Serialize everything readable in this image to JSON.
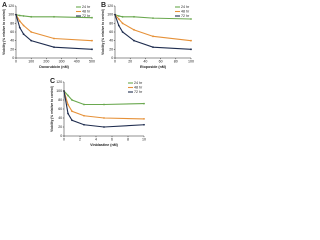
{
  "chart_data": [
    {
      "type": "line",
      "label": "A",
      "x_label": "Doxorubicin (nM)",
      "y_label": "Viability (% relative to control)",
      "x": [
        0,
        25,
        50,
        100,
        250,
        500
      ],
      "xlim": [
        0,
        500
      ],
      "xticks": [
        0,
        100,
        200,
        300,
        400,
        500
      ],
      "ylim": [
        0,
        120
      ],
      "yticks": [
        0,
        20,
        40,
        60,
        80,
        100,
        120
      ],
      "legend": "upper right",
      "series": [
        {
          "name": "24 hr",
          "color": "#6aa84f",
          "values": [
            100,
            98,
            97,
            95,
            95,
            93
          ]
        },
        {
          "name": "48 hr",
          "color": "#e69138",
          "values": [
            100,
            85,
            75,
            60,
            45,
            40
          ]
        },
        {
          "name": "72 hr",
          "color": "#1f2d4f",
          "values": [
            100,
            70,
            55,
            40,
            25,
            20
          ]
        }
      ]
    },
    {
      "type": "line",
      "label": "B",
      "x_label": "Etoposide (nM)",
      "y_label": "Viability (% relative to control)",
      "x": [
        0,
        5,
        10,
        25,
        50,
        100
      ],
      "xlim": [
        0,
        100
      ],
      "xticks": [
        0,
        20,
        40,
        60,
        80,
        100
      ],
      "ylim": [
        0,
        120
      ],
      "yticks": [
        0,
        20,
        40,
        60,
        80,
        100,
        120
      ],
      "legend": "upper right",
      "series": [
        {
          "name": "24 hr",
          "color": "#6aa84f",
          "values": [
            100,
            97,
            95,
            95,
            92,
            90
          ]
        },
        {
          "name": "48 hr",
          "color": "#e69138",
          "values": [
            100,
            90,
            80,
            65,
            50,
            40
          ]
        },
        {
          "name": "72 hr",
          "color": "#1f2d4f",
          "values": [
            100,
            75,
            60,
            40,
            25,
            20
          ]
        }
      ]
    },
    {
      "type": "line",
      "label": "C",
      "x_label": "Vinblastine (nM)",
      "y_label": "Viability (% relative to control)",
      "x": [
        0,
        0.5,
        1,
        2.5,
        5,
        10
      ],
      "xlim": [
        0,
        10
      ],
      "xticks": [
        0,
        2,
        4,
        6,
        8,
        10
      ],
      "ylim": [
        0,
        120
      ],
      "yticks": [
        0,
        20,
        40,
        60,
        80,
        100,
        120
      ],
      "legend": "upper right",
      "series": [
        {
          "name": "24 hr",
          "color": "#6aa84f",
          "values": [
            100,
            90,
            80,
            70,
            70,
            72
          ]
        },
        {
          "name": "48 hr",
          "color": "#e69138",
          "values": [
            100,
            70,
            55,
            45,
            40,
            38
          ]
        },
        {
          "name": "72 hr",
          "color": "#1f2d4f",
          "values": [
            100,
            50,
            35,
            25,
            20,
            25
          ]
        }
      ]
    }
  ]
}
